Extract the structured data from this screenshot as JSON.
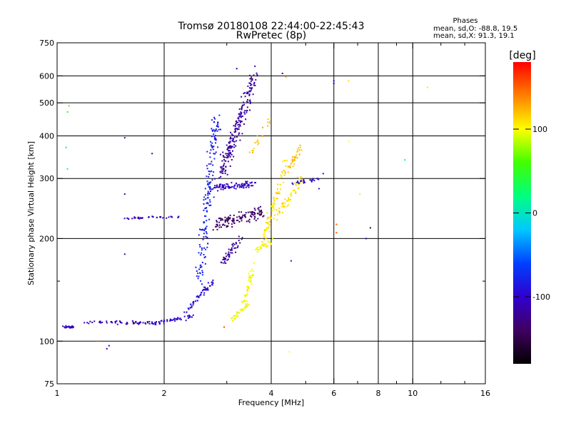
{
  "chart_data": {
    "type": "scatter",
    "title": "Tromsø 20180108 22:44:00-22:45:43",
    "subtitle": "RwPretec (8p)",
    "xlabel": "Frequency [MHz]",
    "ylabel": "Stationary phase Virtual Height [km]",
    "x_scale": "log",
    "y_scale": "log",
    "xlim": [
      1,
      16
    ],
    "ylim": [
      75,
      750
    ],
    "x_ticks": [
      1,
      2,
      4,
      6,
      8,
      10,
      16
    ],
    "x_minor_ticks": [
      3,
      5,
      7,
      9,
      12,
      14
    ],
    "y_ticks": [
      75,
      100,
      200,
      300,
      400,
      500,
      600,
      750
    ],
    "y_minor_ticks": [
      150
    ],
    "x_grid": [
      2,
      4,
      6,
      8,
      10
    ],
    "y_grid": [
      100,
      200,
      300,
      400,
      500,
      600
    ],
    "grid": true,
    "phase_stats": {
      "heading": "Phases",
      "line_o": "mean, sd,O: -88.8, 19.5",
      "line_x": "mean, sd,X:  91.3, 19.1"
    },
    "colorbar": {
      "label": "[deg]",
      "min": -180,
      "max": 180,
      "ticks": [
        100,
        0,
        -100
      ],
      "colors": [
        "#000000",
        "#400060",
        "#3000d0",
        "#0040ff",
        "#00c8ff",
        "#00ff80",
        "#40ff00",
        "#ffff00",
        "#ff8000",
        "#ff0000"
      ]
    },
    "traces": [
      {
        "f": [
          1.04,
          1.12
        ],
        "h": [
          110,
          110
        ],
        "phase": -105,
        "n": 30,
        "jf": 0.012,
        "jh": 0.012
      },
      {
        "f": [
          1.2,
          1.9
        ],
        "h": [
          114,
          113
        ],
        "phase": -110,
        "n": 60,
        "jf": 0.02,
        "jh": 0.015
      },
      {
        "f": [
          1.9,
          2.4
        ],
        "h": [
          113,
          118
        ],
        "phase": -100,
        "n": 45,
        "jf": 0.02,
        "jh": 0.02
      },
      {
        "f": [
          2.3,
          2.75
        ],
        "h": [
          122,
          150
        ],
        "phase": -95,
        "n": 55,
        "jf": 0.015,
        "jh": 0.03
      },
      {
        "f": [
          1.65,
          2.2
        ],
        "h": [
          230,
          232
        ],
        "phase": -110,
        "n": 25,
        "jf": 0.01,
        "jh": 0.01
      },
      {
        "f": [
          1.5,
          1.75
        ],
        "h": [
          228,
          230
        ],
        "phase": -105,
        "n": 10,
        "jf": 0.01,
        "jh": 0.01
      },
      {
        "f": [
          2.5,
          2.8
        ],
        "h": [
          150,
          450
        ],
        "phase": -80,
        "n": 170,
        "jf": 0.045,
        "jh": 0.06
      },
      {
        "f": [
          2.7,
          3.6
        ],
        "h": [
          280,
          290
        ],
        "phase": -105,
        "n": 90,
        "jf": 0.02,
        "jh": 0.03
      },
      {
        "f": [
          2.8,
          3.8
        ],
        "h": [
          220,
          240
        ],
        "phase": -140,
        "n": 120,
        "jf": 0.03,
        "jh": 0.06
      },
      {
        "f": [
          2.9,
          3.3
        ],
        "h": [
          170,
          200
        ],
        "phase": -120,
        "n": 50,
        "jf": 0.02,
        "jh": 0.05
      },
      {
        "f": [
          2.9,
          3.6
        ],
        "h": [
          310,
          600
        ],
        "phase": -118,
        "n": 210,
        "jf": 0.05,
        "jh": 0.07
      },
      {
        "f": [
          3.1,
          3.45
        ],
        "h": [
          115,
          130
        ],
        "phase": 100,
        "n": 40,
        "jf": 0.02,
        "jh": 0.03
      },
      {
        "f": [
          3.35,
          3.6
        ],
        "h": [
          130,
          170
        ],
        "phase": 100,
        "n": 40,
        "jf": 0.02,
        "jh": 0.03
      },
      {
        "f": [
          3.6,
          4.0
        ],
        "h": [
          185,
          195
        ],
        "phase": 100,
        "n": 30,
        "jf": 0.02,
        "jh": 0.03
      },
      {
        "f": [
          3.8,
          4.4
        ],
        "h": [
          200,
          330
        ],
        "phase": 110,
        "n": 80,
        "jf": 0.03,
        "jh": 0.07
      },
      {
        "f": [
          4.1,
          4.9
        ],
        "h": [
          230,
          300
        ],
        "phase": 110,
        "n": 60,
        "jf": 0.03,
        "jh": 0.05
      },
      {
        "f": [
          4.5,
          4.9
        ],
        "h": [
          320,
          380
        ],
        "phase": 120,
        "n": 35,
        "jf": 0.02,
        "jh": 0.04
      },
      {
        "f": [
          4.6,
          5.5
        ],
        "h": [
          290,
          300
        ],
        "phase": -95,
        "n": 25,
        "jf": 0.02,
        "jh": 0.02
      },
      {
        "f": [
          3.5,
          4.0
        ],
        "h": [
          350,
          450
        ],
        "phase": 120,
        "n": 20,
        "jf": 0.03,
        "jh": 0.05
      }
    ],
    "isolated_points": [
      {
        "f": 1.08,
        "h": 490,
        "phase": 60
      },
      {
        "f": 1.07,
        "h": 470,
        "phase": 40
      },
      {
        "f": 1.06,
        "h": 370,
        "phase": 30
      },
      {
        "f": 1.07,
        "h": 320,
        "phase": 20
      },
      {
        "f": 1.55,
        "h": 395,
        "phase": -110
      },
      {
        "f": 1.85,
        "h": 355,
        "phase": -110
      },
      {
        "f": 1.55,
        "h": 270,
        "phase": -110
      },
      {
        "f": 1.55,
        "h": 180,
        "phase": -110
      },
      {
        "f": 1.3,
        "h": 100,
        "phase": 150
      },
      {
        "f": 1.4,
        "h": 97,
        "phase": -100
      },
      {
        "f": 1.38,
        "h": 95,
        "phase": -110
      },
      {
        "f": 2.95,
        "h": 110,
        "phase": 160
      },
      {
        "f": 4.55,
        "h": 172,
        "phase": -90
      },
      {
        "f": 4.5,
        "h": 93,
        "phase": 100
      },
      {
        "f": 5.6,
        "h": 310,
        "phase": -95
      },
      {
        "f": 5.45,
        "h": 280,
        "phase": -95
      },
      {
        "f": 6.0,
        "h": 580,
        "phase": -100
      },
      {
        "f": 6.0,
        "h": 570,
        "phase": -100
      },
      {
        "f": 6.1,
        "h": 220,
        "phase": 150
      },
      {
        "f": 6.1,
        "h": 208,
        "phase": 150
      },
      {
        "f": 6.6,
        "h": 580,
        "phase": 110
      },
      {
        "f": 6.6,
        "h": 385,
        "phase": 100
      },
      {
        "f": 7.1,
        "h": 270,
        "phase": 90
      },
      {
        "f": 7.6,
        "h": 215,
        "phase": -150
      },
      {
        "f": 7.4,
        "h": 200,
        "phase": -120
      },
      {
        "f": 9.5,
        "h": 340,
        "phase": 20
      },
      {
        "f": 11.0,
        "h": 555,
        "phase": 110
      },
      {
        "f": 3.6,
        "h": 640,
        "phase": -110
      },
      {
        "f": 3.2,
        "h": 630,
        "phase": -110
      },
      {
        "f": 4.3,
        "h": 610,
        "phase": -110
      },
      {
        "f": 4.4,
        "h": 595,
        "phase": 120
      }
    ]
  }
}
